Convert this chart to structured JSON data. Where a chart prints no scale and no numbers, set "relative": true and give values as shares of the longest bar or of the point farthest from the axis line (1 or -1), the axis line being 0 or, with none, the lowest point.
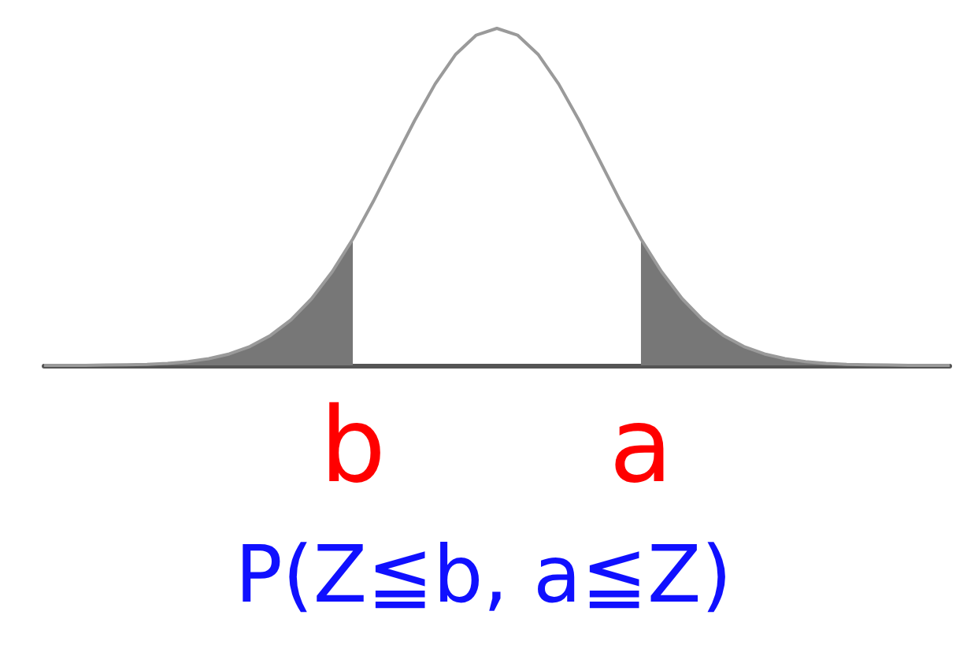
{
  "chart_data": {
    "type": "line",
    "relative": true,
    "marker": "none",
    "grid": false,
    "categories": [
      null,
      null,
      null,
      null,
      null,
      null,
      null,
      null,
      null,
      null,
      null,
      null,
      null,
      null,
      null,
      "b",
      null,
      null,
      null,
      null,
      null,
      null,
      null,
      null,
      null,
      null,
      null,
      null,
      null,
      "a",
      null,
      null,
      null,
      null,
      null,
      null,
      null,
      null,
      null,
      null,
      null,
      null,
      null,
      null,
      null
    ],
    "series": [
      {
        "color": "#9a9a9a",
        "values": [
          0,
          0,
          0,
          0.001,
          0.002,
          0.003,
          0.006,
          0.011,
          0.02,
          0.034,
          0.056,
          0.089,
          0.135,
          0.198,
          0.278,
          0.375,
          0.487,
          0.607,
          0.726,
          0.835,
          0.923,
          0.98,
          1,
          0.98,
          0.923,
          0.835,
          0.726,
          0.607,
          0.487,
          0.375,
          0.278,
          0.198,
          0.135,
          0.089,
          0.056,
          0.034,
          0.02,
          0.011,
          0.006,
          0.003,
          0.002,
          0.001,
          0,
          0,
          0
        ]
      },
      {
        "type": "area",
        "color": "#777777",
        "values": [
          0,
          0,
          0,
          0.001,
          0.002,
          0.003,
          0.006,
          0.011,
          0.02,
          0.034,
          0.056,
          0.089,
          0.135,
          0.198,
          0.278,
          0.375,
          null,
          null,
          null,
          null,
          null,
          null,
          null,
          null,
          null,
          null,
          null,
          null,
          null,
          null,
          null,
          null,
          null,
          null,
          null,
          null,
          null,
          null,
          null,
          null,
          null,
          null,
          null,
          null,
          null
        ]
      },
      {
        "type": "area",
        "color": "#777777",
        "values": [
          null,
          null,
          null,
          null,
          null,
          null,
          null,
          null,
          null,
          null,
          null,
          null,
          null,
          null,
          null,
          null,
          null,
          null,
          null,
          null,
          null,
          null,
          null,
          null,
          null,
          null,
          null,
          null,
          null,
          0.375,
          0.278,
          0.198,
          0.135,
          0.089,
          0.056,
          0.034,
          0.02,
          0.011,
          0.006,
          0.003,
          0.002,
          0.001,
          0,
          0,
          0
        ]
      }
    ],
    "annotations": [
      "P(Z≦b, a≦Z)"
    ]
  }
}
